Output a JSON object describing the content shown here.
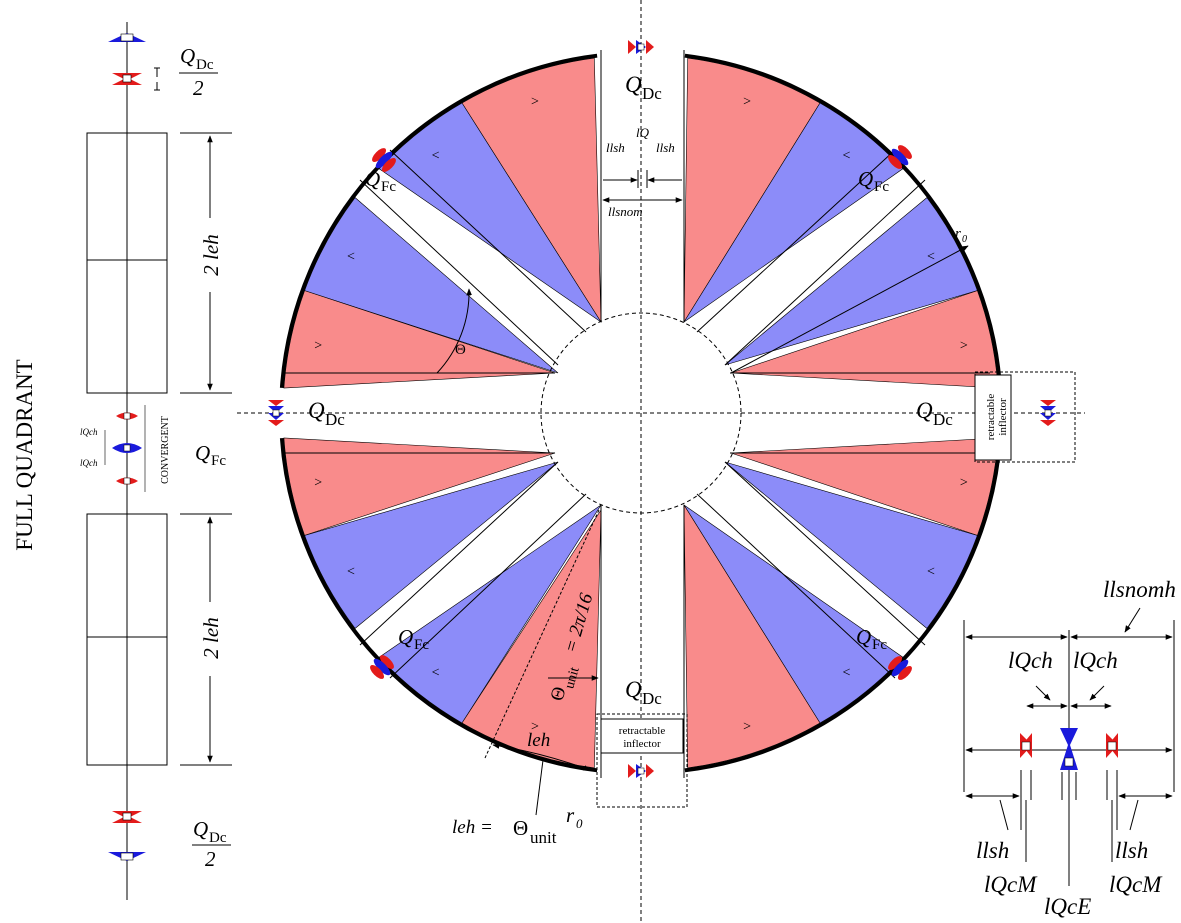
{
  "colors": {
    "red_sector": "#f98b8b",
    "blue_sector": "#8c8cf9",
    "quad_red": "#e31b1b",
    "quad_blue": "#1a1adc",
    "line": "#000000"
  },
  "left_column": {
    "vertical_title": "FULL QUADRANT",
    "convergent_label": "CONVERGENT",
    "top_label_num": "Q",
    "top_label_sub": "Dc",
    "top_label_den": "2",
    "bottom_label_num": "Q",
    "bottom_label_sub": "Dc",
    "bottom_label_den": "2",
    "mid_label": "Q",
    "mid_label_sub": "Fc",
    "upper_dim": "2 leh",
    "lower_dim": "2 leh",
    "lqch_a": "lQch",
    "lqch_b": "lQch"
  },
  "ring": {
    "qdc_sub": "Dc",
    "qfc_sub": "Fc",
    "q": "Q",
    "r0": "r",
    "r0_sub": "0",
    "theta": "Θ",
    "theta_unit_eq": "Θ",
    "theta_unit_sub": "unit",
    "theta_unit_val": "= 2π/16",
    "leh": "leh",
    "leh_formula_lhs": "leh =",
    "leh_formula_theta": "Θ",
    "leh_formula_sub": "unit",
    "leh_formula_r": "r",
    "leh_formula_r_sub": "0",
    "llsh_left": "llsh",
    "llsh_right": "llsh",
    "lq": "lQ",
    "llsnom": "llsnom",
    "inflector_right_1": "retractable",
    "inflector_right_2": "inflector",
    "inflector_bottom_1": "retractable",
    "inflector_bottom_2": "inflector"
  },
  "detail": {
    "llsnomh": "llsnomh",
    "lqch_left": "lQch",
    "lqch_right": "lQch",
    "llsh_left": "llsh",
    "llsh_right": "llsh",
    "lqcm_left": "lQcM",
    "lqce": "lQcE",
    "lqcm_right": "lQcM"
  }
}
